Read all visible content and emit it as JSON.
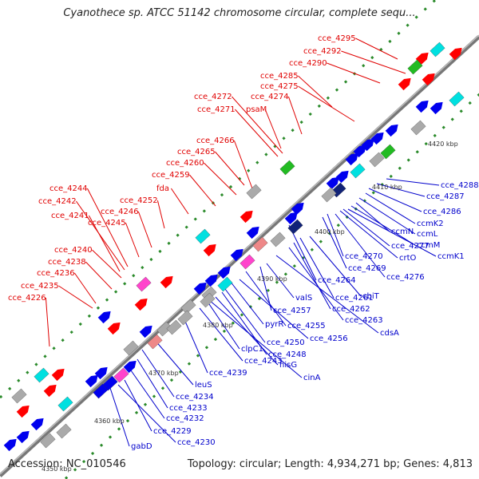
{
  "header": {
    "title": "Cyanothece sp. ATCC 51142 chromosome circular, complete sequ..."
  },
  "footer": {
    "accession": "Accession: NC_010546",
    "summary": "Topology: circular; Length: 4,934,271 bp; Genes: 4,813"
  },
  "colors": {
    "forward_label": "#e00000",
    "reverse_label": "#0000cc",
    "backbone": "#888888",
    "cds_blue": "#0000ee",
    "cds_red": "#ff0000"
  },
  "kbp_ticks": [
    "4420 kbp",
    "4410 kbp",
    "4400 kbp",
    "4390 kbp",
    "4380 kbp",
    "4370 kbp",
    "4360 kbp",
    "4350 kbp"
  ],
  "forward_labels": [
    "cce_4295",
    "cce_4292",
    "cce_4290",
    "cce_4285",
    "cce_4275",
    "cce_4274",
    "psaM",
    "cce_4272",
    "cce_4271",
    "cce_4266",
    "cce_4265",
    "cce_4260",
    "cce_4259",
    "fda",
    "cce_4252",
    "cce_4246",
    "cce_4245",
    "cce_4244",
    "cce_4242",
    "cce_4241",
    "cce_4240",
    "cce_4238",
    "cce_4236",
    "cce_4235",
    "cce_4226"
  ],
  "reverse_labels": [
    "cce_4288",
    "cce_4287",
    "cce_4286",
    "ccmK2",
    "ccmL",
    "ccmN",
    "ccmM",
    "ccmK1",
    "cce_4277",
    "crtO",
    "cce_4270",
    "cce_4269",
    "cce_4276",
    "cce_4264",
    "cbiT",
    "cce_4261",
    "cce_4262",
    "cce_4263",
    "cdsA",
    "valS",
    "cce_4257",
    "cce_4255",
    "cce_4256",
    "pyrR",
    "cce_4250",
    "cce_4248",
    "hisG",
    "cinA",
    "clpC1",
    "cce_4243",
    "cce_4239",
    "leuS",
    "cce_4234",
    "cce_4233",
    "cce_4232",
    "cce_4229",
    "cce_4230",
    "gabD"
  ]
}
